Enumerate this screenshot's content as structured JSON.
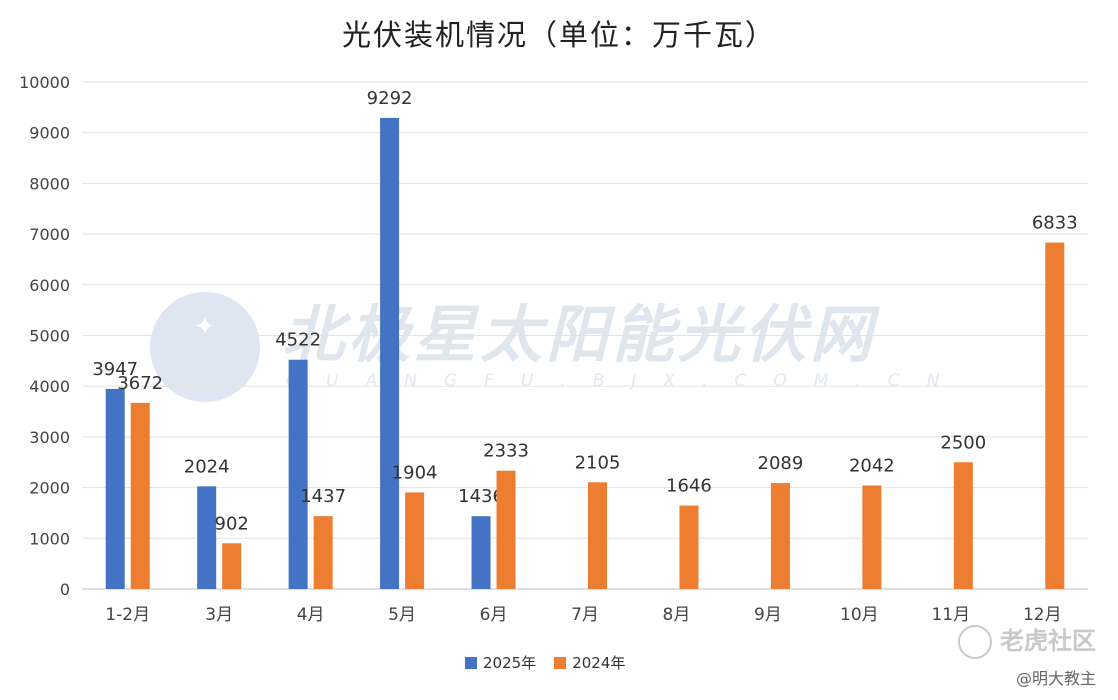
{
  "chart_data": {
    "type": "bar",
    "title": "光伏装机情况（单位：万千瓦）",
    "categories": [
      "1-2月",
      "3月",
      "4月",
      "5月",
      "6月",
      "7月",
      "8月",
      "9月",
      "10月",
      "11月",
      "12月"
    ],
    "series": [
      {
        "name": "2025年",
        "color": "#4472c4",
        "values": [
          3947,
          2024,
          4522,
          9292,
          1436,
          null,
          null,
          null,
          null,
          null,
          null
        ]
      },
      {
        "name": "2024年",
        "color": "#ed7d31",
        "values": [
          3672,
          902,
          1437,
          1904,
          2333,
          2105,
          1646,
          2089,
          2042,
          2500,
          6833
        ]
      }
    ],
    "yticks": [
      0,
      1000,
      2000,
      3000,
      4000,
      5000,
      6000,
      7000,
      8000,
      9000,
      10000
    ],
    "ylim": [
      0,
      10000
    ],
    "grid": true,
    "legend": "bottom"
  },
  "watermark": {
    "name": "北极星太阳能光伏网",
    "domain": "GUANGFU.BJX.COM.CN"
  },
  "footer": {
    "site": "老虎社区",
    "author": "@明大教主"
  }
}
